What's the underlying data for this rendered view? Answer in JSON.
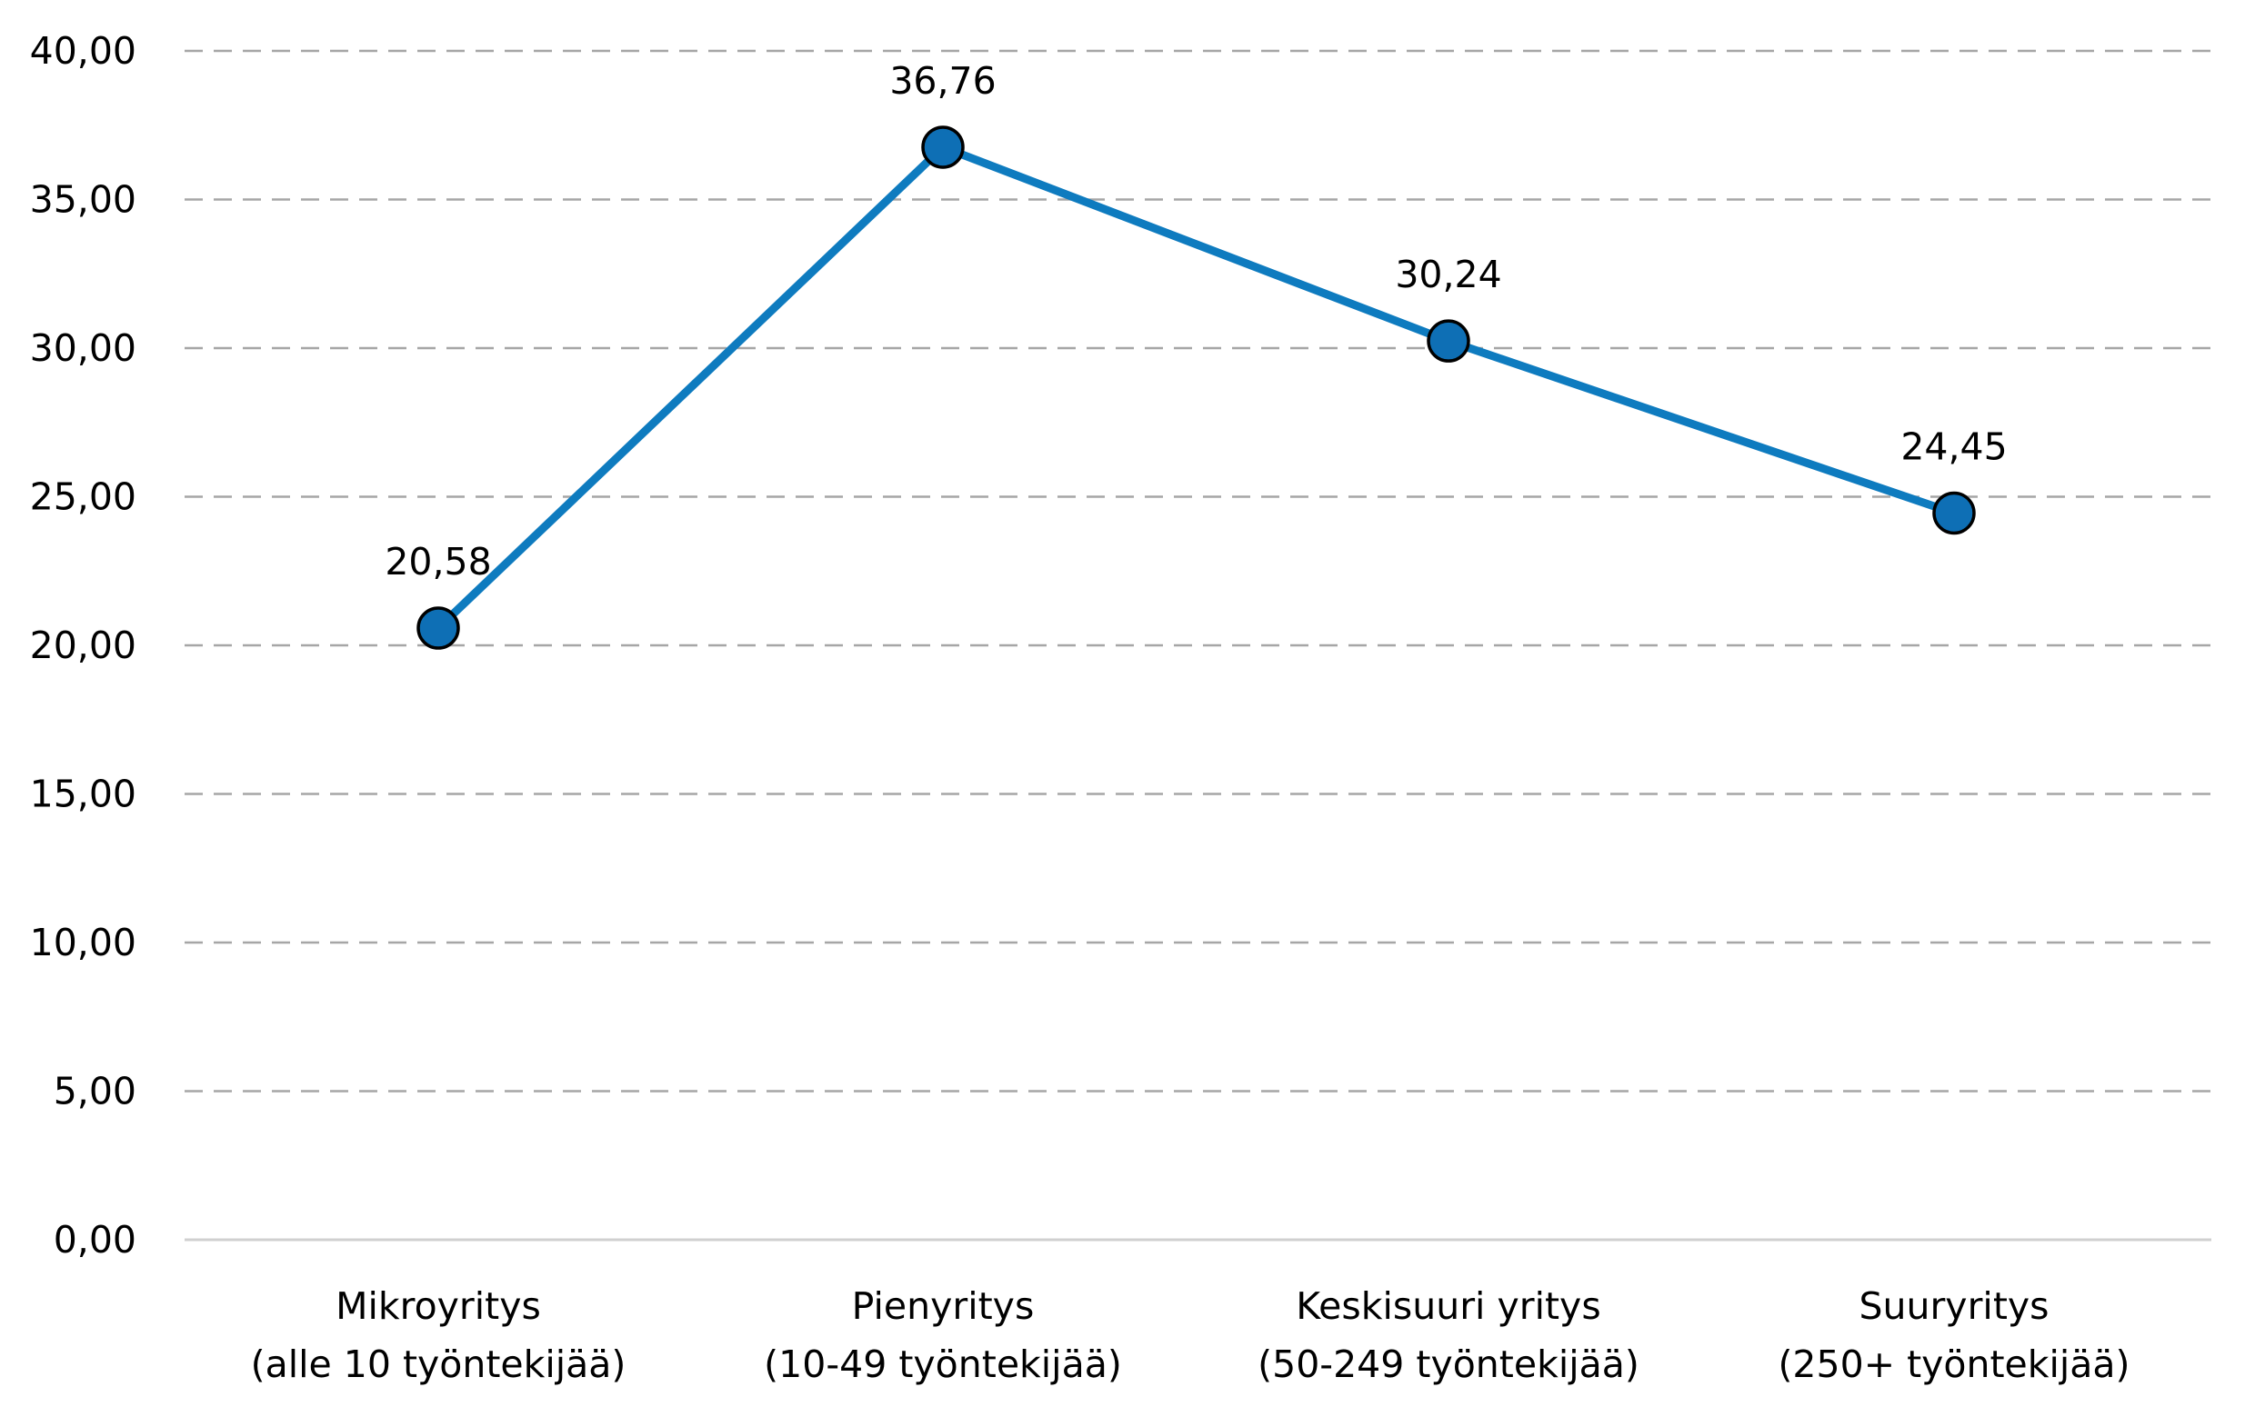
{
  "chart_data": {
    "type": "line",
    "title": "",
    "xlabel": "",
    "ylabel": "",
    "categories": [
      [
        "Mikroyritys",
        "(alle 10 työntekijää)"
      ],
      [
        "Pienyritys",
        "(10-49 työntekijää)"
      ],
      [
        "Keskisuuri yritys",
        "(50-249 työntekijää)"
      ],
      [
        "Suuryritys",
        "(250+ työntekijää)"
      ]
    ],
    "series": [
      {
        "values": [
          20.58,
          36.76,
          30.24,
          24.45
        ],
        "labels": [
          "20,58",
          "36,76",
          "30,24",
          "24,45"
        ]
      }
    ],
    "ylim": [
      0,
      40
    ],
    "yticks": [
      0,
      5,
      10,
      15,
      20,
      25,
      30,
      35,
      40
    ],
    "ytick_labels": [
      "0,00",
      "5,00",
      "10,00",
      "15,00",
      "20,00",
      "25,00",
      "30,00",
      "35,00",
      "40,00"
    ],
    "grid": true,
    "legend": "none",
    "colors": {
      "line": "#0e7bbf",
      "marker_fill": "#0e6fb5",
      "marker_stroke": "#000000",
      "grid": "#a6a6a6"
    }
  }
}
